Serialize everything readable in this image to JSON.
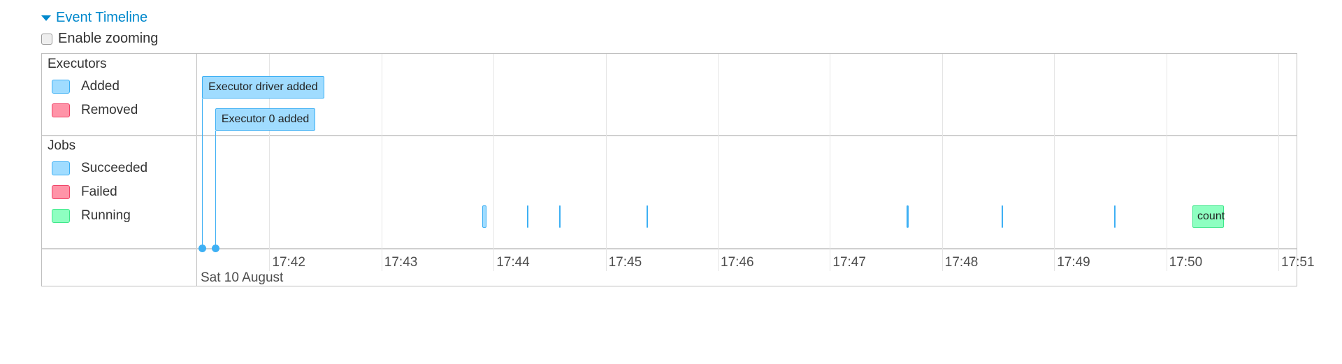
{
  "header": {
    "title": "Event Timeline",
    "expanded": true,
    "collapse_icon": "triangle-down-icon"
  },
  "zoom": {
    "label": "Enable zooming",
    "checked": false
  },
  "legend": {
    "executors": {
      "title": "Executors",
      "items": [
        {
          "label": "Added",
          "color": "#a0dcff",
          "border": "#3eb0f4"
        },
        {
          "label": "Removed",
          "color": "#ff94a8",
          "border": "#f04468"
        }
      ]
    },
    "jobs": {
      "title": "Jobs",
      "items": [
        {
          "label": "Succeeded",
          "color": "#a0dcff",
          "border": "#3eb0f4"
        },
        {
          "label": "Failed",
          "color": "#ff94a8",
          "border": "#f04468"
        },
        {
          "label": "Running",
          "color": "#8effc1",
          "border": "#3ee88a"
        }
      ]
    }
  },
  "timeline": {
    "date": "Sat 10 August",
    "ticks": [
      "17:42",
      "17:43",
      "17:44",
      "17:45",
      "17:46",
      "17:47",
      "17:48",
      "17:49",
      "17:50",
      "17:51"
    ],
    "executor_events": [
      {
        "label": "Executor driver added",
        "time": "17:41:24"
      },
      {
        "label": "Executor 0 added",
        "time": "17:41:31"
      }
    ],
    "jobs": [
      {
        "start": "17:43:54",
        "end": "17:43:56",
        "status": "succeeded",
        "label": ""
      },
      {
        "start": "17:44:18",
        "end": "17:44:18",
        "status": "succeeded",
        "label": ""
      },
      {
        "start": "17:44:35",
        "end": "17:44:35",
        "status": "succeeded",
        "label": ""
      },
      {
        "start": "17:45:22",
        "end": "17:45:22",
        "status": "succeeded",
        "label": ""
      },
      {
        "start": "17:47:41",
        "end": "17:47:42",
        "status": "succeeded",
        "label": ""
      },
      {
        "start": "17:48:32",
        "end": "17:48:32",
        "status": "succeeded",
        "label": ""
      },
      {
        "start": "17:49:32",
        "end": "17:49:32",
        "status": "succeeded",
        "label": ""
      },
      {
        "start": "17:50:14",
        "end": "17:50:31",
        "status": "running",
        "label": "count"
      }
    ]
  }
}
